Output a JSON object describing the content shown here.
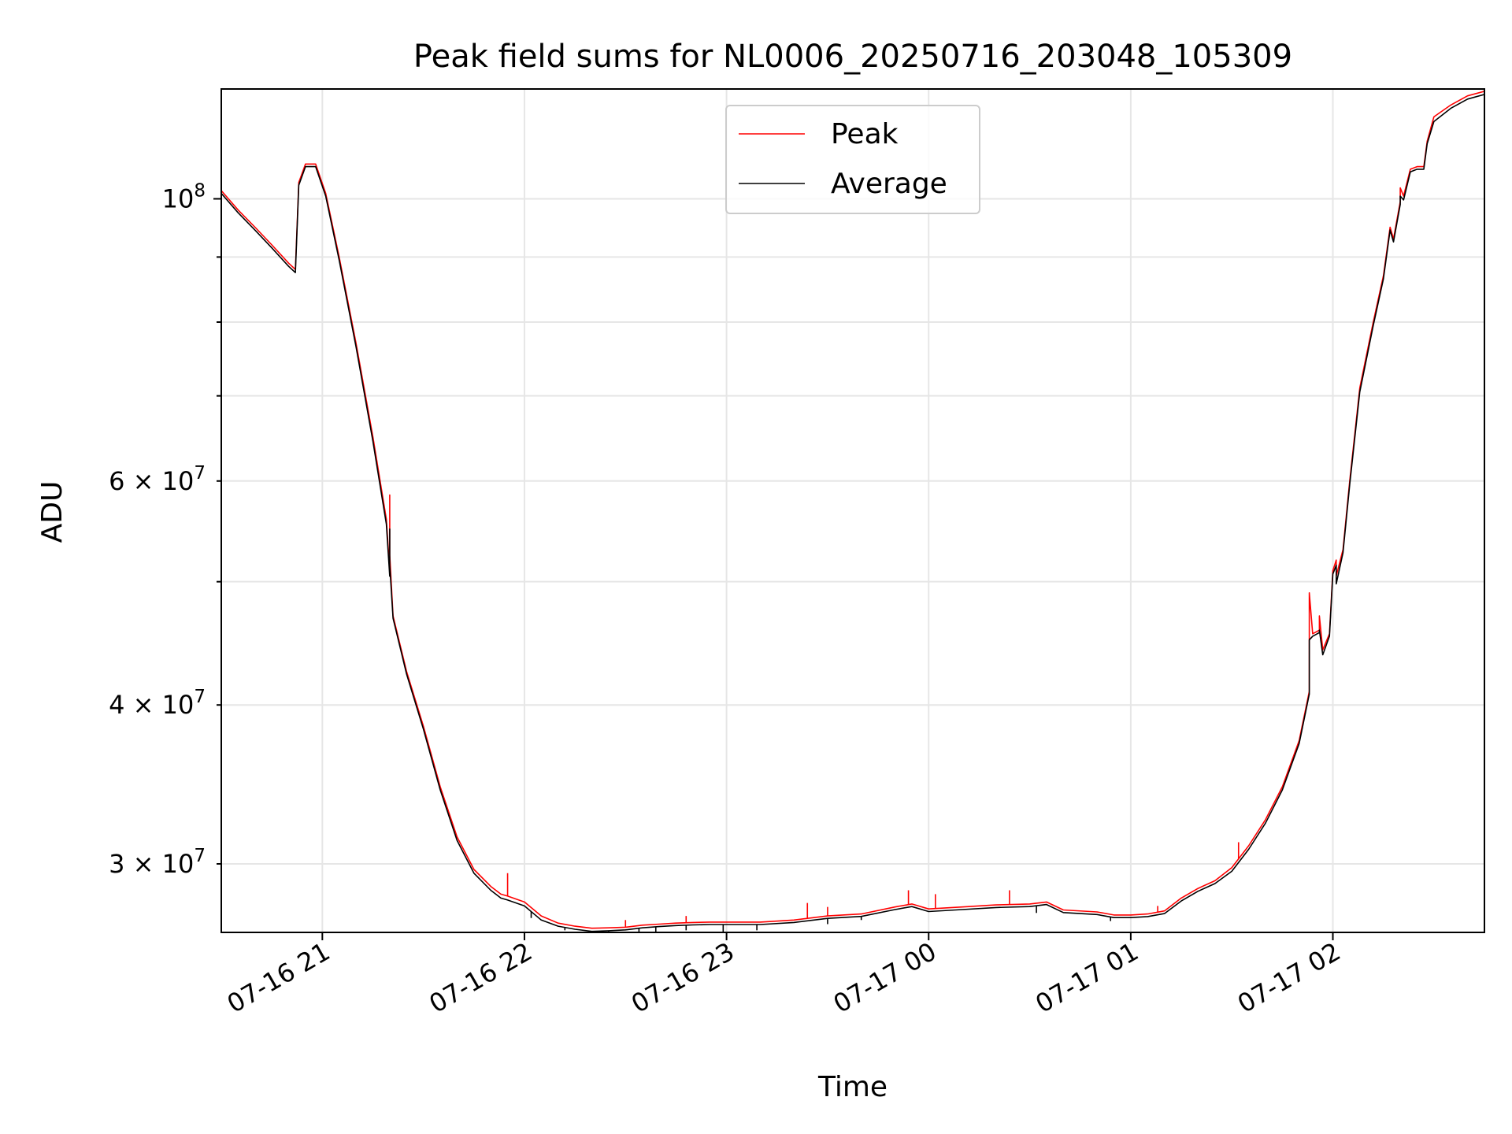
{
  "chart_data": {
    "type": "line",
    "title": "Peak field sums for NL0006_20250716_203048_105309",
    "xlabel": "Time",
    "ylabel": "ADU",
    "yscale": "log",
    "grid": true,
    "legend_position": "top-center",
    "xlim": [
      "2025-07-16 20:30",
      "2025-07-17 02:45"
    ],
    "ylim": [
      26500000,
      122000000
    ],
    "x_ticks": [
      {
        "value": "2025-07-16 21:00",
        "label": "07-16 21"
      },
      {
        "value": "2025-07-16 22:00",
        "label": "07-16 22"
      },
      {
        "value": "2025-07-16 23:00",
        "label": "07-16 23"
      },
      {
        "value": "2025-07-17 00:00",
        "label": "07-17 00"
      },
      {
        "value": "2025-07-17 01:00",
        "label": "07-17 01"
      },
      {
        "value": "2025-07-17 02:00",
        "label": "07-17 02"
      }
    ],
    "y_major_ticks": [
      {
        "value": 100000000,
        "label_base": "10",
        "label_exp": "8"
      }
    ],
    "y_minor_ticks": [
      {
        "value": 30000000,
        "label_base": "3 × 10",
        "label_exp": "7"
      },
      {
        "value": 40000000,
        "label_base": "4 × 10",
        "label_exp": "7"
      },
      {
        "value": 60000000,
        "label_base": "6 × 10",
        "label_exp": "7"
      },
      {
        "value": 50000000,
        "label_base": "",
        "label_exp": ""
      },
      {
        "value": 70000000,
        "label_base": "",
        "label_exp": ""
      },
      {
        "value": 80000000,
        "label_base": "",
        "label_exp": ""
      },
      {
        "value": 90000000,
        "label_base": "",
        "label_exp": ""
      }
    ],
    "series": [
      {
        "name": "Peak",
        "color": "#ff0000",
        "points": [
          [
            "2025-07-16 20:30",
            101500000
          ],
          [
            "2025-07-16 20:35",
            98000000
          ],
          [
            "2025-07-16 20:40",
            95000000
          ],
          [
            "2025-07-16 20:45",
            92000000
          ],
          [
            "2025-07-16 20:50",
            89000000
          ],
          [
            "2025-07-16 20:52",
            88000000
          ],
          [
            "2025-07-16 20:53",
            103000000
          ],
          [
            "2025-07-16 20:55",
            106500000
          ],
          [
            "2025-07-16 20:58",
            106500000
          ],
          [
            "2025-07-16 21:01",
            101000000
          ],
          [
            "2025-07-16 21:05",
            90000000
          ],
          [
            "2025-07-16 21:10",
            77000000
          ],
          [
            "2025-07-16 21:15",
            65000000
          ],
          [
            "2025-07-16 21:19",
            56000000
          ],
          [
            "2025-07-16 21:20",
            51000000
          ],
          [
            "2025-07-16 21:20",
            58500000
          ],
          [
            "2025-07-16 21:20",
            52500000
          ],
          [
            "2025-07-16 21:21",
            47000000
          ],
          [
            "2025-07-16 21:25",
            42500000
          ],
          [
            "2025-07-16 21:30",
            38500000
          ],
          [
            "2025-07-16 21:35",
            34500000
          ],
          [
            "2025-07-16 21:40",
            31500000
          ],
          [
            "2025-07-16 21:45",
            29700000
          ],
          [
            "2025-07-16 21:50",
            28800000
          ],
          [
            "2025-07-16 21:53",
            28400000
          ],
          [
            "2025-07-16 21:55",
            28300000
          ],
          [
            "2025-07-16 22:00",
            28000000
          ],
          [
            "2025-07-16 22:05",
            27300000
          ],
          [
            "2025-07-16 22:10",
            26950000
          ],
          [
            "2025-07-16 22:15",
            26800000
          ],
          [
            "2025-07-16 22:20",
            26700000
          ],
          [
            "2025-07-16 22:25",
            26720000
          ],
          [
            "2025-07-16 22:30",
            26750000
          ],
          [
            "2025-07-16 22:35",
            26850000
          ],
          [
            "2025-07-16 22:40",
            26900000
          ],
          [
            "2025-07-16 22:45",
            26950000
          ],
          [
            "2025-07-16 22:50",
            26980000
          ],
          [
            "2025-07-16 22:55",
            27000000
          ],
          [
            "2025-07-16 23:00",
            27000000
          ],
          [
            "2025-07-16 23:10",
            27000000
          ],
          [
            "2025-07-16 23:20",
            27100000
          ],
          [
            "2025-07-16 23:30",
            27300000
          ],
          [
            "2025-07-16 23:40",
            27400000
          ],
          [
            "2025-07-16 23:50",
            27750000
          ],
          [
            "2025-07-16 23:55",
            27900000
          ],
          [
            "2025-07-17 00:00",
            27650000
          ],
          [
            "2025-07-17 00:10",
            27750000
          ],
          [
            "2025-07-17 00:20",
            27850000
          ],
          [
            "2025-07-17 00:30",
            27900000
          ],
          [
            "2025-07-17 00:35",
            28000000
          ],
          [
            "2025-07-17 00:40",
            27600000
          ],
          [
            "2025-07-17 00:50",
            27500000
          ],
          [
            "2025-07-17 00:55",
            27350000
          ],
          [
            "2025-07-17 01:00",
            27350000
          ],
          [
            "2025-07-17 01:05",
            27400000
          ],
          [
            "2025-07-17 01:10",
            27550000
          ],
          [
            "2025-07-17 01:15",
            28200000
          ],
          [
            "2025-07-17 01:20",
            28700000
          ],
          [
            "2025-07-17 01:25",
            29100000
          ],
          [
            "2025-07-17 01:30",
            29800000
          ],
          [
            "2025-07-17 01:35",
            31000000
          ],
          [
            "2025-07-17 01:40",
            32500000
          ],
          [
            "2025-07-17 01:45",
            34500000
          ],
          [
            "2025-07-17 01:50",
            37500000
          ],
          [
            "2025-07-17 01:53",
            41000000
          ],
          [
            "2025-07-17 01:53",
            49000000
          ],
          [
            "2025-07-17 01:54",
            45500000
          ],
          [
            "2025-07-17 01:56",
            45800000
          ],
          [
            "2025-07-17 01:56",
            47000000
          ],
          [
            "2025-07-17 01:57",
            44200000
          ],
          [
            "2025-07-17 01:59",
            45500000
          ],
          [
            "2025-07-17 02:00",
            51000000
          ],
          [
            "2025-07-17 02:01",
            52000000
          ],
          [
            "2025-07-17 02:01",
            50500000
          ],
          [
            "2025-07-17 02:03",
            53000000
          ],
          [
            "2025-07-17 02:05",
            60000000
          ],
          [
            "2025-07-17 02:08",
            71000000
          ],
          [
            "2025-07-17 02:12",
            80000000
          ],
          [
            "2025-07-17 02:15",
            87000000
          ],
          [
            "2025-07-17 02:17",
            95000000
          ],
          [
            "2025-07-17 02:18",
            93000000
          ],
          [
            "2025-07-17 02:20",
            99500000
          ],
          [
            "2025-07-17 02:20",
            102000000
          ],
          [
            "2025-07-17 02:21",
            100500000
          ],
          [
            "2025-07-17 02:23",
            105500000
          ],
          [
            "2025-07-17 02:25",
            106000000
          ],
          [
            "2025-07-17 02:27",
            106000000
          ],
          [
            "2025-07-17 02:28",
            111000000
          ],
          [
            "2025-07-17 02:30",
            116000000
          ],
          [
            "2025-07-17 02:35",
            118500000
          ],
          [
            "2025-07-17 02:40",
            120500000
          ],
          [
            "2025-07-17 02:45",
            121500000
          ]
        ]
      },
      {
        "name": "Average",
        "color": "#000000",
        "points": [
          [
            "2025-07-16 20:30",
            101000000
          ],
          [
            "2025-07-16 20:35",
            97500000
          ],
          [
            "2025-07-16 20:40",
            94500000
          ],
          [
            "2025-07-16 20:45",
            91500000
          ],
          [
            "2025-07-16 20:50",
            88500000
          ],
          [
            "2025-07-16 20:52",
            87500000
          ],
          [
            "2025-07-16 20:53",
            102500000
          ],
          [
            "2025-07-16 20:55",
            106000000
          ],
          [
            "2025-07-16 20:58",
            106000000
          ],
          [
            "2025-07-16 21:01",
            100500000
          ],
          [
            "2025-07-16 21:05",
            89500000
          ],
          [
            "2025-07-16 21:10",
            76500000
          ],
          [
            "2025-07-16 21:15",
            64500000
          ],
          [
            "2025-07-16 21:19",
            55500000
          ],
          [
            "2025-07-16 21:20",
            50500000
          ],
          [
            "2025-07-16 21:20",
            55000000
          ],
          [
            "2025-07-16 21:20",
            51500000
          ],
          [
            "2025-07-16 21:21",
            46800000
          ],
          [
            "2025-07-16 21:25",
            42300000
          ],
          [
            "2025-07-16 21:30",
            38300000
          ],
          [
            "2025-07-16 21:35",
            34300000
          ],
          [
            "2025-07-16 21:40",
            31300000
          ],
          [
            "2025-07-16 21:45",
            29500000
          ],
          [
            "2025-07-16 21:50",
            28600000
          ],
          [
            "2025-07-16 21:53",
            28200000
          ],
          [
            "2025-07-16 21:55",
            28100000
          ],
          [
            "2025-07-16 22:00",
            27800000
          ],
          [
            "2025-07-16 22:05",
            27100000
          ],
          [
            "2025-07-16 22:10",
            26800000
          ],
          [
            "2025-07-16 22:15",
            26650000
          ],
          [
            "2025-07-16 22:20",
            26550000
          ],
          [
            "2025-07-16 22:25",
            26580000
          ],
          [
            "2025-07-16 22:30",
            26620000
          ],
          [
            "2025-07-16 22:35",
            26720000
          ],
          [
            "2025-07-16 22:40",
            26780000
          ],
          [
            "2025-07-16 22:45",
            26830000
          ],
          [
            "2025-07-16 22:50",
            26860000
          ],
          [
            "2025-07-16 22:55",
            26880000
          ],
          [
            "2025-07-16 23:00",
            26880000
          ],
          [
            "2025-07-16 23:10",
            26880000
          ],
          [
            "2025-07-16 23:20",
            26980000
          ],
          [
            "2025-07-16 23:30",
            27180000
          ],
          [
            "2025-07-16 23:40",
            27280000
          ],
          [
            "2025-07-16 23:50",
            27620000
          ],
          [
            "2025-07-16 23:55",
            27770000
          ],
          [
            "2025-07-17 00:00",
            27520000
          ],
          [
            "2025-07-17 00:10",
            27620000
          ],
          [
            "2025-07-17 00:20",
            27720000
          ],
          [
            "2025-07-17 00:30",
            27770000
          ],
          [
            "2025-07-17 00:35",
            27870000
          ],
          [
            "2025-07-17 00:40",
            27470000
          ],
          [
            "2025-07-17 00:50",
            27370000
          ],
          [
            "2025-07-17 00:55",
            27220000
          ],
          [
            "2025-07-17 01:00",
            27220000
          ],
          [
            "2025-07-17 01:05",
            27270000
          ],
          [
            "2025-07-17 01:10",
            27420000
          ],
          [
            "2025-07-17 01:15",
            28050000
          ],
          [
            "2025-07-17 01:20",
            28550000
          ],
          [
            "2025-07-17 01:25",
            28950000
          ],
          [
            "2025-07-17 01:30",
            29600000
          ],
          [
            "2025-07-17 01:35",
            30800000
          ],
          [
            "2025-07-17 01:40",
            32300000
          ],
          [
            "2025-07-17 01:45",
            34300000
          ],
          [
            "2025-07-17 01:50",
            37300000
          ],
          [
            "2025-07-17 01:53",
            40800000
          ],
          [
            "2025-07-17 01:53",
            45000000
          ],
          [
            "2025-07-17 01:54",
            45300000
          ],
          [
            "2025-07-17 01:56",
            45600000
          ],
          [
            "2025-07-17 01:56",
            45800000
          ],
          [
            "2025-07-17 01:57",
            43800000
          ],
          [
            "2025-07-17 01:59",
            45300000
          ],
          [
            "2025-07-17 02:00",
            50700000
          ],
          [
            "2025-07-17 02:01",
            51500000
          ],
          [
            "2025-07-17 02:01",
            49800000
          ],
          [
            "2025-07-17 02:03",
            52700000
          ],
          [
            "2025-07-17 02:05",
            59600000
          ],
          [
            "2025-07-17 02:08",
            70500000
          ],
          [
            "2025-07-17 02:12",
            79500000
          ],
          [
            "2025-07-17 02:15",
            86500000
          ],
          [
            "2025-07-17 02:17",
            94500000
          ],
          [
            "2025-07-17 02:18",
            92500000
          ],
          [
            "2025-07-17 02:20",
            99000000
          ],
          [
            "2025-07-17 02:20",
            100500000
          ],
          [
            "2025-07-17 02:21",
            99800000
          ],
          [
            "2025-07-17 02:23",
            105000000
          ],
          [
            "2025-07-17 02:25",
            105500000
          ],
          [
            "2025-07-17 02:27",
            105500000
          ],
          [
            "2025-07-17 02:28",
            110500000
          ],
          [
            "2025-07-17 02:30",
            115000000
          ],
          [
            "2025-07-17 02:35",
            117800000
          ],
          [
            "2025-07-17 02:40",
            119800000
          ],
          [
            "2025-07-17 02:45",
            120800000
          ]
        ]
      }
    ],
    "peak_spikes": [
      [
        "2025-07-16 21:55",
        29500000
      ],
      [
        "2025-07-16 22:30",
        27100000
      ],
      [
        "2025-07-16 22:48",
        27300000
      ],
      [
        "2025-07-16 23:24",
        27950000
      ],
      [
        "2025-07-16 23:30",
        27750000
      ],
      [
        "2025-07-16 23:54",
        28600000
      ],
      [
        "2025-07-17 00:02",
        28400000
      ],
      [
        "2025-07-17 00:24",
        28600000
      ],
      [
        "2025-07-17 01:08",
        27800000
      ],
      [
        "2025-07-17 01:32",
        31200000
      ]
    ],
    "average_dips": [
      [
        "2025-07-16 22:02",
        27200000
      ],
      [
        "2025-07-16 22:12",
        26600000
      ],
      [
        "2025-07-16 22:25",
        26350000
      ],
      [
        "2025-07-16 22:34",
        26400000
      ],
      [
        "2025-07-16 22:39",
        26450000
      ],
      [
        "2025-07-16 22:48",
        26600000
      ],
      [
        "2025-07-16 22:59",
        26300000
      ],
      [
        "2025-07-16 23:09",
        26600000
      ],
      [
        "2025-07-16 23:30",
        26900000
      ],
      [
        "2025-07-16 23:40",
        27100000
      ],
      [
        "2025-07-17 00:32",
        27450000
      ],
      [
        "2025-07-17 00:54",
        27050000
      ]
    ]
  }
}
